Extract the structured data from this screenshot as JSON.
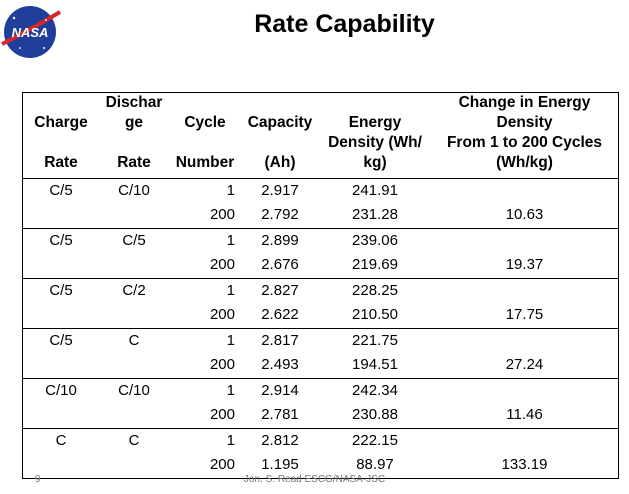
{
  "logo": {
    "text": "NASA"
  },
  "title": "Rate Capability",
  "table": {
    "headers": {
      "charge": [
        "Charge",
        "Rate"
      ],
      "discharge": [
        "Dischar",
        "ge",
        "Rate"
      ],
      "cycle": [
        "Cycle",
        "Number"
      ],
      "capacity": [
        "Capacity",
        "(Ah)"
      ],
      "energy": [
        "Energy",
        "Density (Wh/",
        "kg)"
      ],
      "change": [
        "Change in Energy",
        "Density",
        "From 1 to 200 Cycles",
        "(Wh/kg)"
      ]
    },
    "groups": [
      {
        "charge": "C/5",
        "discharge": "C/10",
        "rows": [
          {
            "cycle": "1",
            "capacity": "2.917",
            "energy": "241.91"
          },
          {
            "cycle": "200",
            "capacity": "2.792",
            "energy": "231.28"
          }
        ],
        "change": "10.63"
      },
      {
        "charge": "C/5",
        "discharge": "C/5",
        "rows": [
          {
            "cycle": "1",
            "capacity": "2.899",
            "energy": "239.06"
          },
          {
            "cycle": "200",
            "capacity": "2.676",
            "energy": "219.69"
          }
        ],
        "change": "19.37"
      },
      {
        "charge": "C/5",
        "discharge": "C/2",
        "rows": [
          {
            "cycle": "1",
            "capacity": "2.827",
            "energy": "228.25"
          },
          {
            "cycle": "200",
            "capacity": "2.622",
            "energy": "210.50"
          }
        ],
        "change": "17.75"
      },
      {
        "charge": "C/5",
        "discharge": "C",
        "rows": [
          {
            "cycle": "1",
            "capacity": "2.817",
            "energy": "221.75"
          },
          {
            "cycle": "200",
            "capacity": "2.493",
            "energy": "194.51"
          }
        ],
        "change": "27.24"
      },
      {
        "charge": "C/10",
        "discharge": "C/10",
        "rows": [
          {
            "cycle": "1",
            "capacity": "2.914",
            "energy": "242.34"
          },
          {
            "cycle": "200",
            "capacity": "2.781",
            "energy": "230.88"
          }
        ],
        "change": "11.46"
      },
      {
        "charge": "C",
        "discharge": "C",
        "rows": [
          {
            "cycle": "1",
            "capacity": "2.812",
            "energy": "222.15"
          },
          {
            "cycle": "200",
            "capacity": "1.195",
            "energy": "88.97"
          }
        ],
        "change": "133.19"
      }
    ]
  },
  "footer": {
    "page_number": "9",
    "credit": "Jon. S. Read ESCG/NASA-JSC"
  }
}
